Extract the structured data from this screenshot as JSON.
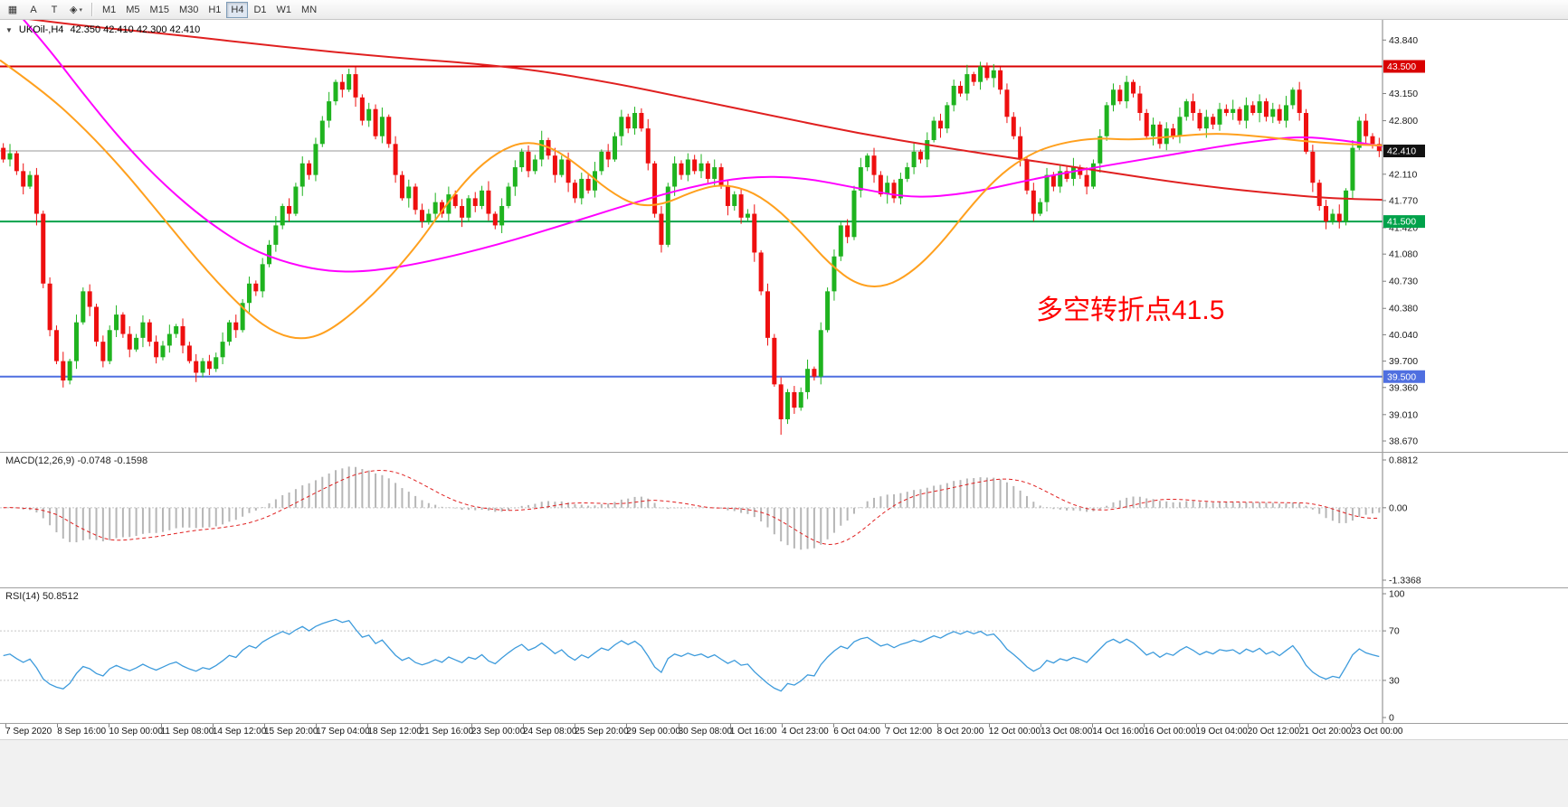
{
  "toolbar": {
    "tool_buttons": [
      {
        "name": "grid-tool",
        "glyph": "▦"
      },
      {
        "name": "text-label-tool",
        "glyph": "A"
      },
      {
        "name": "text-tool",
        "glyph": "T"
      },
      {
        "name": "shapes-tool",
        "glyph": "◈",
        "caret": "▾"
      }
    ],
    "timeframes": [
      "M1",
      "M5",
      "M15",
      "M30",
      "H1",
      "H4",
      "D1",
      "W1",
      "MN"
    ],
    "active_timeframe": "H4"
  },
  "chart_data": {
    "type": "candlestick",
    "symbol_label": "UKOil-,H4",
    "ohlc_readout": "42.350 42.410 42.300 42.410",
    "collapse_glyph": "▼",
    "annotation": {
      "text": "多空转折点41.5",
      "color": "#FF0000"
    },
    "price_axis": {
      "visible_max": 44.1,
      "visible_min": 38.53,
      "ticks": [
        "43.840",
        "43.150",
        "42.800",
        "42.110",
        "41.770",
        "41.420",
        "41.080",
        "40.730",
        "40.380",
        "40.040",
        "39.700",
        "39.360",
        "39.010",
        "38.670"
      ]
    },
    "levels": [
      {
        "value": 43.5,
        "label": "43.500",
        "color": "#d90000",
        "width": 2
      },
      {
        "value": 41.5,
        "label": "41.500",
        "color": "#00a24a",
        "width": 2
      },
      {
        "value": 39.5,
        "label": "39.500",
        "color": "#4f6fe0",
        "width": 2
      }
    ],
    "current_price": {
      "value": 42.41,
      "label": "42.410",
      "line_color": "#9a9a9a",
      "badge_color": "#111111"
    },
    "candles": {
      "first_open": 42.45,
      "up_color": "#1fb31f",
      "down_color": "#ee0f0f",
      "wick_pattern": [
        0.06,
        0.1,
        0.04,
        0.12,
        0.05,
        0.08,
        0.03,
        0.09
      ],
      "wick_overrides": {
        "5": {
          "lo": 0.15
        },
        "52": {
          "hi": 0.07
        },
        "113": {
          "lo": 0.12
        },
        "117": {
          "lo": 0.2
        },
        "147": {
          "hi": 0.06
        },
        "149": {
          "hi": 0.08
        },
        "169": {
          "hi": 0.08
        },
        "199": {
          "lo": 0.1
        }
      },
      "closes": [
        42.3,
        42.38,
        42.15,
        41.95,
        42.1,
        41.6,
        40.7,
        40.1,
        39.7,
        39.45,
        39.7,
        40.2,
        40.6,
        40.4,
        39.95,
        39.7,
        40.1,
        40.3,
        40.05,
        39.85,
        40.0,
        40.2,
        39.95,
        39.75,
        39.9,
        40.05,
        40.15,
        39.9,
        39.7,
        39.55,
        39.7,
        39.6,
        39.75,
        39.95,
        40.2,
        40.1,
        40.45,
        40.7,
        40.6,
        40.95,
        41.2,
        41.45,
        41.7,
        41.6,
        41.95,
        42.25,
        42.1,
        42.5,
        42.8,
        43.05,
        43.3,
        43.2,
        43.4,
        43.1,
        42.8,
        42.95,
        42.6,
        42.85,
        42.5,
        42.1,
        41.8,
        41.95,
        41.65,
        41.5,
        41.6,
        41.75,
        41.6,
        41.85,
        41.7,
        41.55,
        41.8,
        41.7,
        41.9,
        41.6,
        41.45,
        41.7,
        41.95,
        42.2,
        42.4,
        42.15,
        42.3,
        42.55,
        42.35,
        42.1,
        42.3,
        42.0,
        41.8,
        42.05,
        41.9,
        42.15,
        42.4,
        42.3,
        42.6,
        42.85,
        42.7,
        42.9,
        42.7,
        42.25,
        41.6,
        41.2,
        41.95,
        42.25,
        42.1,
        42.3,
        42.15,
        42.25,
        42.05,
        42.2,
        41.95,
        41.7,
        41.85,
        41.55,
        41.6,
        41.1,
        40.6,
        40.0,
        39.4,
        38.95,
        39.3,
        39.1,
        39.3,
        39.6,
        39.5,
        40.1,
        40.6,
        41.05,
        41.45,
        41.3,
        41.9,
        42.2,
        42.35,
        42.1,
        41.85,
        42.0,
        41.8,
        42.05,
        42.2,
        42.4,
        42.3,
        42.55,
        42.8,
        42.7,
        43.0,
        43.25,
        43.15,
        43.4,
        43.3,
        43.5,
        43.35,
        43.45,
        43.2,
        42.85,
        42.6,
        42.3,
        41.9,
        41.6,
        41.75,
        42.1,
        41.95,
        42.15,
        42.05,
        42.2,
        42.1,
        41.95,
        42.25,
        42.6,
        43.0,
        43.2,
        43.05,
        43.3,
        43.15,
        42.9,
        42.6,
        42.75,
        42.5,
        42.7,
        42.6,
        42.85,
        43.05,
        42.9,
        42.7,
        42.85,
        42.75,
        42.95,
        42.9,
        42.95,
        42.8,
        43.0,
        42.9,
        43.05,
        42.85,
        42.95,
        42.8,
        43.0,
        43.2,
        42.9,
        42.4,
        42.0,
        41.7,
        41.5,
        41.6,
        41.5,
        41.9,
        42.45,
        42.8,
        42.6,
        42.5,
        42.41
      ]
    },
    "moving_averages": [
      {
        "name": "slow-red",
        "color": "#e02020",
        "width": 2,
        "points": [
          [
            0,
            44.16
          ],
          [
            0.05,
            44.04
          ],
          [
            0.12,
            43.92
          ],
          [
            0.2,
            43.76
          ],
          [
            0.28,
            43.62
          ],
          [
            0.37,
            43.5
          ],
          [
            0.44,
            43.3
          ],
          [
            0.5,
            43.08
          ],
          [
            0.56,
            42.86
          ],
          [
            0.62,
            42.64
          ],
          [
            0.68,
            42.46
          ],
          [
            0.74,
            42.3
          ],
          [
            0.8,
            42.14
          ],
          [
            0.86,
            41.98
          ],
          [
            0.91,
            41.88
          ],
          [
            0.96,
            41.8
          ],
          [
            1,
            41.78
          ]
        ]
      },
      {
        "name": "mid-magenta",
        "color": "#ff00ff",
        "width": 2,
        "points": [
          [
            0,
            44.45
          ],
          [
            0.03,
            43.85
          ],
          [
            0.06,
            43.15
          ],
          [
            0.09,
            42.5
          ],
          [
            0.12,
            41.95
          ],
          [
            0.15,
            41.5
          ],
          [
            0.18,
            41.15
          ],
          [
            0.21,
            40.95
          ],
          [
            0.24,
            40.85
          ],
          [
            0.27,
            40.86
          ],
          [
            0.31,
            40.98
          ],
          [
            0.36,
            41.2
          ],
          [
            0.41,
            41.47
          ],
          [
            0.46,
            41.75
          ],
          [
            0.5,
            41.95
          ],
          [
            0.54,
            42.08
          ],
          [
            0.58,
            42.07
          ],
          [
            0.62,
            41.93
          ],
          [
            0.66,
            41.8
          ],
          [
            0.7,
            41.86
          ],
          [
            0.74,
            42.02
          ],
          [
            0.78,
            42.16
          ],
          [
            0.82,
            42.28
          ],
          [
            0.86,
            42.4
          ],
          [
            0.9,
            42.52
          ],
          [
            0.94,
            42.6
          ],
          [
            0.97,
            42.55
          ],
          [
            1,
            42.47
          ]
        ]
      },
      {
        "name": "fast-orange",
        "color": "#ffa01e",
        "width": 2,
        "points": [
          [
            0,
            43.58
          ],
          [
            0.03,
            43.2
          ],
          [
            0.06,
            42.72
          ],
          [
            0.09,
            42.15
          ],
          [
            0.12,
            41.5
          ],
          [
            0.15,
            40.85
          ],
          [
            0.18,
            40.3
          ],
          [
            0.2,
            40.05
          ],
          [
            0.22,
            39.97
          ],
          [
            0.24,
            40.1
          ],
          [
            0.27,
            40.55
          ],
          [
            0.3,
            41.15
          ],
          [
            0.32,
            41.65
          ],
          [
            0.34,
            42.1
          ],
          [
            0.36,
            42.4
          ],
          [
            0.38,
            42.54
          ],
          [
            0.4,
            42.45
          ],
          [
            0.42,
            42.2
          ],
          [
            0.44,
            41.9
          ],
          [
            0.46,
            41.7
          ],
          [
            0.48,
            41.72
          ],
          [
            0.5,
            41.88
          ],
          [
            0.52,
            41.98
          ],
          [
            0.54,
            41.92
          ],
          [
            0.56,
            41.7
          ],
          [
            0.58,
            41.35
          ],
          [
            0.6,
            40.95
          ],
          [
            0.62,
            40.68
          ],
          [
            0.64,
            40.65
          ],
          [
            0.66,
            40.85
          ],
          [
            0.68,
            41.2
          ],
          [
            0.7,
            41.65
          ],
          [
            0.72,
            42.05
          ],
          [
            0.74,
            42.32
          ],
          [
            0.76,
            42.48
          ],
          [
            0.79,
            42.58
          ],
          [
            0.82,
            42.55
          ],
          [
            0.85,
            42.6
          ],
          [
            0.88,
            42.64
          ],
          [
            0.91,
            42.6
          ],
          [
            0.94,
            42.54
          ],
          [
            0.97,
            42.5
          ],
          [
            1,
            42.48
          ]
        ]
      }
    ],
    "macd": {
      "label": "MACD(12,26,9) -0.0748 -0.1598",
      "fast": 12,
      "slow": 26,
      "signal": 9,
      "axis": {
        "max": 0.8812,
        "min": -1.3368,
        "labels": {
          "max": "0.8812",
          "zero": "0.00",
          "min": "-1.3368"
        }
      },
      "histogram_color": "#b6b6b6",
      "signal_color": "#e02020"
    },
    "rsi": {
      "label": "RSI(14) 50.8512",
      "period": 14,
      "levels": [
        70,
        30
      ],
      "axis_labels": [
        "100",
        "70",
        "30",
        "0"
      ],
      "line_color": "#3d9bdc"
    },
    "time_axis": {
      "labels": [
        "7 Sep 2020",
        "8 Sep 16:00",
        "10 Sep 00:00",
        "11 Sep 08:00",
        "14 Sep 12:00",
        "15 Sep 20:00",
        "17 Sep 04:00",
        "18 Sep 12:00",
        "21 Sep 16:00",
        "23 Sep 00:00",
        "24 Sep 08:00",
        "25 Sep 20:00",
        "29 Sep 00:00",
        "30 Sep 08:00",
        "1 Oct 16:00",
        "4 Oct 23:00",
        "6 Oct 04:00",
        "7 Oct 12:00",
        "8 Oct 20:00",
        "12 Oct 00:00",
        "13 Oct 08:00",
        "14 Oct 16:00",
        "16 Oct 00:00",
        "19 Oct 04:00",
        "20 Oct 12:00",
        "21 Oct 20:00",
        "23 Oct 00:00"
      ]
    }
  }
}
